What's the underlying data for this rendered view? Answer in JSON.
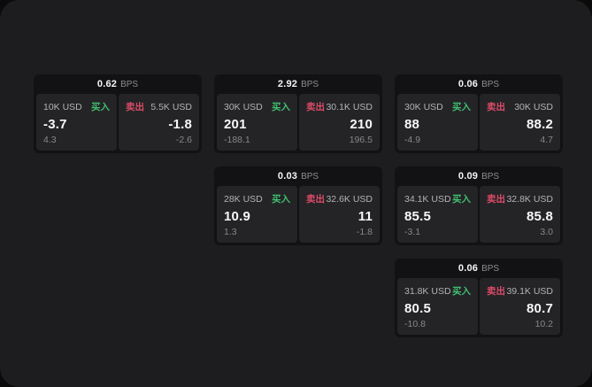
{
  "colors": {
    "buy": "#3fbf6f",
    "sell": "#dd4b67"
  },
  "cards": [
    {
      "bps": "0.62",
      "bps_unit": "BPS",
      "grid": {
        "row": 1,
        "col": 1
      },
      "buy": {
        "size": "10K USD",
        "side": "买入",
        "value": "-3.7",
        "sub": "4.3"
      },
      "sell": {
        "side": "卖出",
        "size": "5.5K USD",
        "value": "-1.8",
        "sub": "-2.6"
      }
    },
    {
      "bps": "2.92",
      "bps_unit": "BPS",
      "grid": {
        "row": 1,
        "col": 2
      },
      "buy": {
        "size": "30K USD",
        "side": "买入",
        "value": "201",
        "sub": "-188.1"
      },
      "sell": {
        "side": "卖出",
        "size": "30.1K USD",
        "value": "210",
        "sub": "196.5"
      }
    },
    {
      "bps": "0.06",
      "bps_unit": "BPS",
      "grid": {
        "row": 1,
        "col": 3
      },
      "buy": {
        "size": "30K USD",
        "side": "买入",
        "value": "88",
        "sub": "-4.9"
      },
      "sell": {
        "side": "卖出",
        "size": "30K USD",
        "value": "88.2",
        "sub": "4.7"
      }
    },
    {
      "bps": "0.03",
      "bps_unit": "BPS",
      "grid": {
        "row": 2,
        "col": 2
      },
      "buy": {
        "size": "28K USD",
        "side": "买入",
        "value": "10.9",
        "sub": "1.3"
      },
      "sell": {
        "side": "卖出",
        "size": "32.6K USD",
        "value": "11",
        "sub": "-1.8"
      }
    },
    {
      "bps": "0.09",
      "bps_unit": "BPS",
      "grid": {
        "row": 2,
        "col": 3
      },
      "buy": {
        "size": "34.1K USD",
        "side": "买入",
        "value": "85.5",
        "sub": "-3.1"
      },
      "sell": {
        "side": "卖出",
        "size": "32.8K USD",
        "value": "85.8",
        "sub": "3.0"
      }
    },
    {
      "bps": "0.06",
      "bps_unit": "BPS",
      "grid": {
        "row": 3,
        "col": 3
      },
      "buy": {
        "size": "31.8K USD",
        "side": "买入",
        "value": "80.5",
        "sub": "-10.8"
      },
      "sell": {
        "side": "卖出",
        "size": "39.1K USD",
        "value": "80.7",
        "sub": "10.2"
      }
    }
  ]
}
